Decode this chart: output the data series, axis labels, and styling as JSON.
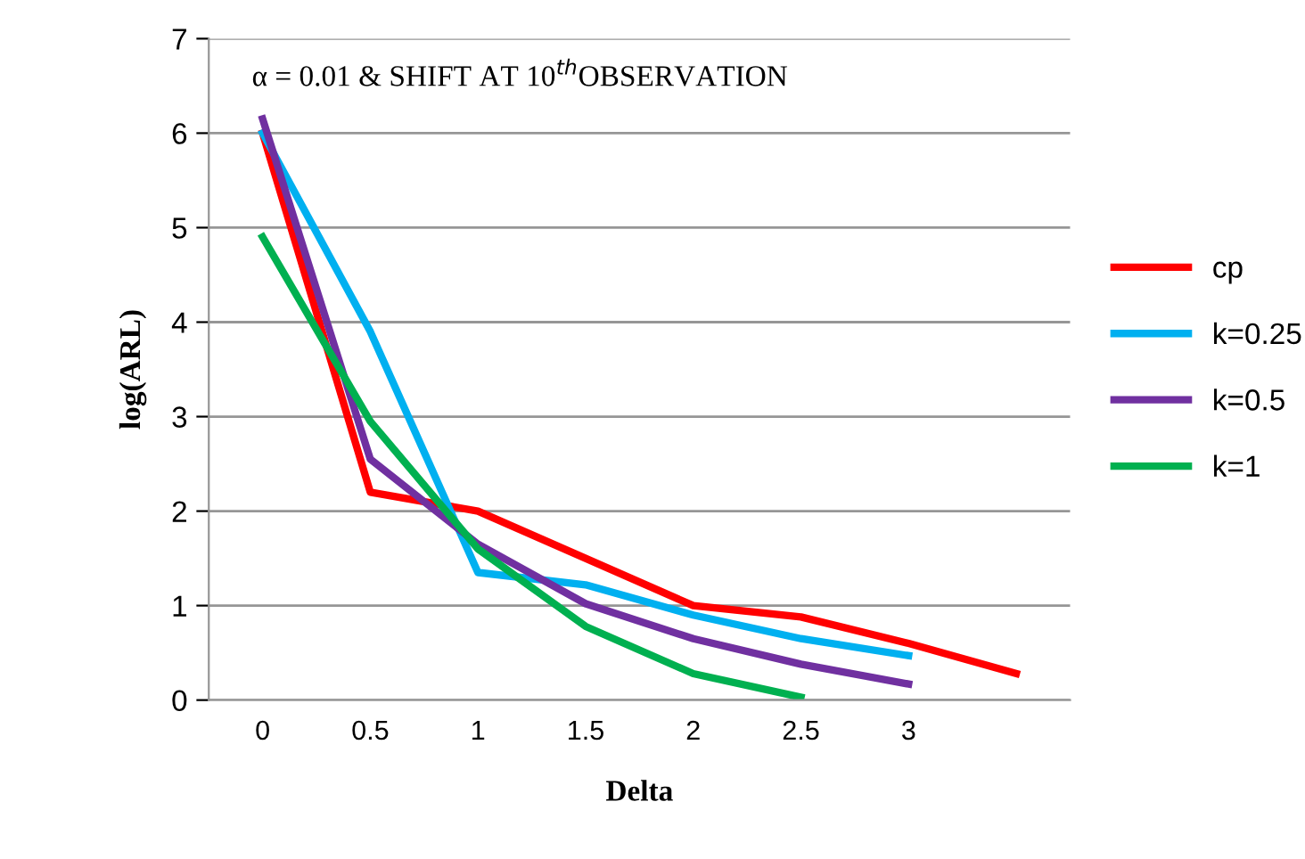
{
  "chart_data": {
    "type": "line",
    "title": "α = 0.01 & SHIFT AT 10$^{th}$OBSERVATION",
    "xlabel": "Delta",
    "ylabel": "log(ARL)",
    "categories": [
      "0",
      "0.5",
      "1",
      "1.5",
      "2",
      "2.5",
      "3",
      null
    ],
    "ylim": [
      0,
      7
    ],
    "yticks": [
      0,
      1,
      2,
      3,
      4,
      5,
      6,
      7
    ],
    "grid": "y",
    "legend": "right",
    "marker": "none",
    "series": [
      {
        "name": "cp",
        "color": "#ff0000",
        "values": [
          6.0,
          2.2,
          2.0,
          1.5,
          1.0,
          0.88,
          0.6,
          0.28
        ]
      },
      {
        "name": "k=0.25",
        "color": "#00b0f0",
        "values": [
          6.0,
          3.9,
          1.35,
          1.22,
          0.9,
          0.65,
          0.47,
          null
        ]
      },
      {
        "name": "k=0.5",
        "color": "#7030a0",
        "values": [
          6.15,
          2.55,
          1.65,
          1.02,
          0.65,
          0.38,
          0.17,
          null
        ]
      },
      {
        "name": "k=1",
        "color": "#00b050",
        "values": [
          4.9,
          2.95,
          1.6,
          0.78,
          0.28,
          0.03,
          null,
          null
        ]
      }
    ]
  }
}
